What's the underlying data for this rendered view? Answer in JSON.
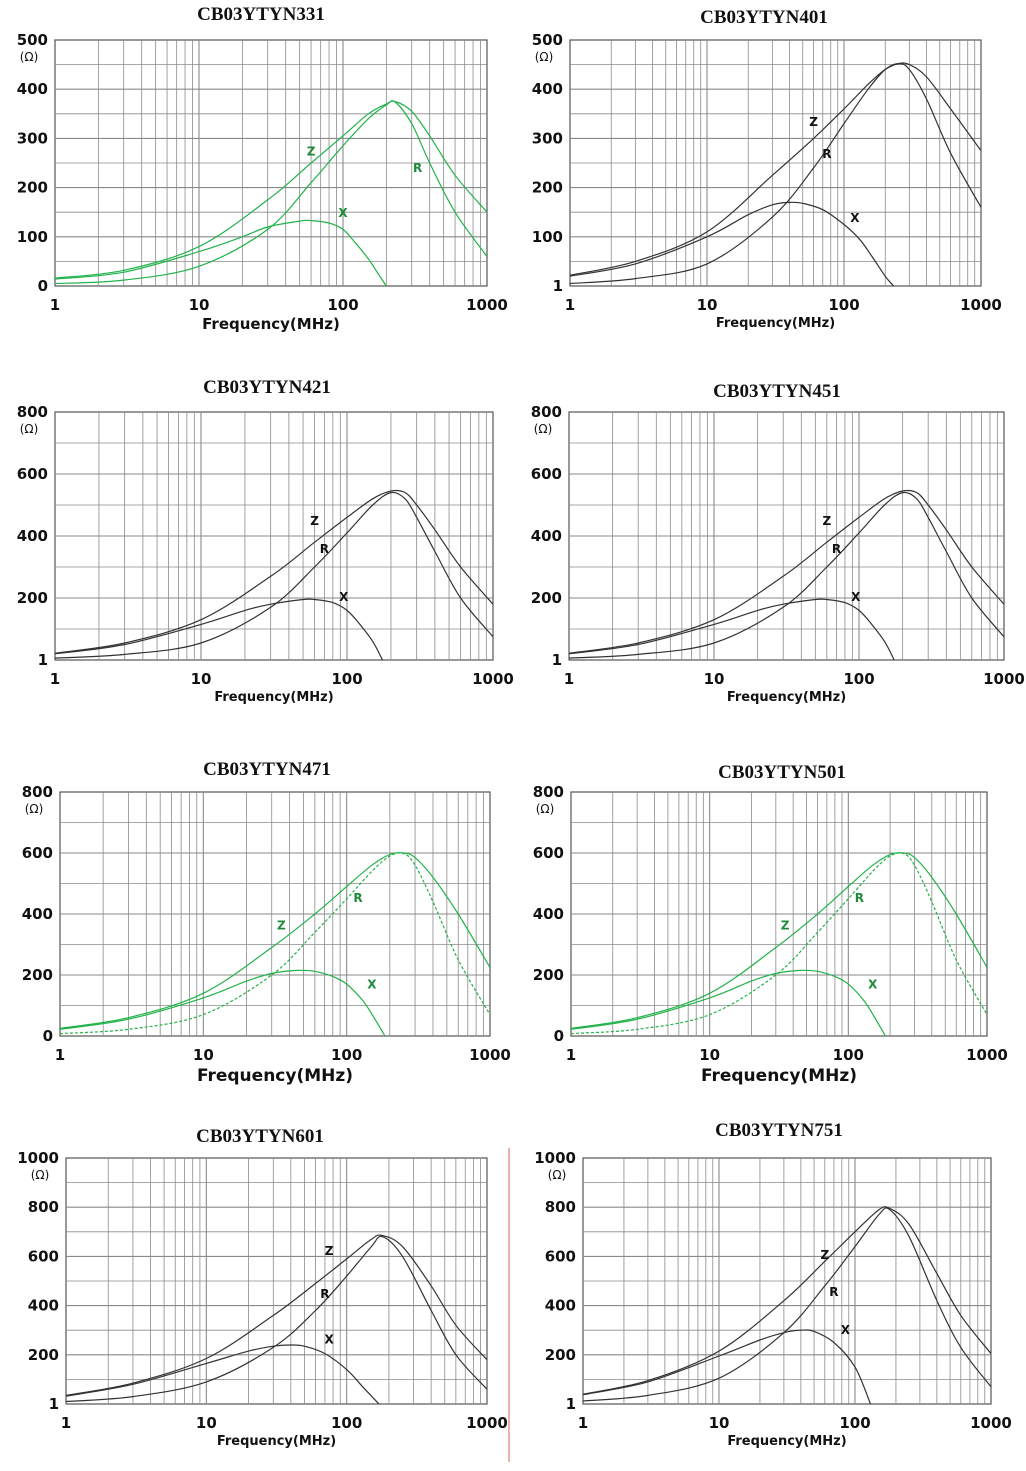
{
  "colors": {
    "black_curves": "#333333",
    "green_curves": "#22b24a",
    "grid": "#8a8a8a",
    "divider": "#e06060"
  },
  "chart_data": [
    {
      "type": "line",
      "title": "CB03YTYN331",
      "curve_color": "green",
      "xlabel": "Frequency(MHz)",
      "yunit": "(Ω)",
      "x_scale": "log",
      "xlim": [
        1,
        1000
      ],
      "xticks": [
        "1",
        "10",
        "100",
        "1000"
      ],
      "ylim": [
        0,
        500
      ],
      "yticks": [
        "0",
        "100",
        "200",
        "300",
        "400",
        "500"
      ],
      "curve_labels": [
        "Z",
        "R",
        "X"
      ],
      "series": [
        {
          "name": "Z",
          "x": [
            1,
            3,
            10,
            30,
            60,
            100,
            150,
            200,
            230,
            300,
            400,
            600,
            1000
          ],
          "y": [
            16,
            32,
            80,
            175,
            250,
            305,
            350,
            370,
            375,
            355,
            305,
            225,
            150
          ]
        },
        {
          "name": "R",
          "x": [
            1,
            3,
            10,
            30,
            60,
            100,
            150,
            200,
            230,
            300,
            400,
            600,
            1000
          ],
          "y": [
            5,
            12,
            40,
            115,
            210,
            285,
            340,
            368,
            374,
            330,
            250,
            150,
            60
          ]
        },
        {
          "name": "X",
          "x": [
            1,
            3,
            10,
            20,
            30,
            50,
            60,
            80,
            100,
            120,
            150,
            180,
            200
          ],
          "y": [
            14,
            28,
            70,
            100,
            120,
            132,
            133,
            128,
            115,
            90,
            55,
            20,
            0
          ]
        }
      ]
    },
    {
      "type": "line",
      "title": "CB03YTYN401",
      "curve_color": "black",
      "xlabel": "Frequency(MHz)",
      "yunit": "(Ω)",
      "x_scale": "log",
      "xlim": [
        1,
        1000
      ],
      "xticks": [
        "1",
        "10",
        "100",
        "1000"
      ],
      "ylim": [
        0,
        500
      ],
      "yticks": [
        "1",
        "100",
        "200",
        "300",
        "400",
        "500"
      ],
      "curve_labels": [
        "Z",
        "R",
        "X"
      ],
      "series": [
        {
          "name": "Z",
          "x": [
            1,
            3,
            10,
            30,
            60,
            100,
            150,
            200,
            250,
            300,
            400,
            600,
            1000
          ],
          "y": [
            22,
            50,
            110,
            225,
            300,
            360,
            410,
            440,
            452,
            450,
            425,
            360,
            275
          ]
        },
        {
          "name": "R",
          "x": [
            1,
            3,
            10,
            30,
            60,
            100,
            150,
            200,
            250,
            300,
            400,
            600,
            1000
          ],
          "y": [
            5,
            15,
            45,
            140,
            240,
            330,
            400,
            440,
            452,
            440,
            380,
            270,
            160
          ]
        },
        {
          "name": "X",
          "x": [
            1,
            3,
            10,
            20,
            30,
            40,
            50,
            70,
            100,
            130,
            160,
            200,
            230
          ],
          "y": [
            20,
            45,
            100,
            145,
            165,
            170,
            168,
            155,
            125,
            95,
            60,
            20,
            0
          ]
        }
      ]
    },
    {
      "type": "line",
      "title": "CB03YTYN421",
      "curve_color": "black",
      "xlabel": "Frequency(MHz)",
      "yunit": "(Ω)",
      "x_scale": "log",
      "xlim": [
        1,
        1000
      ],
      "xticks": [
        "1",
        "10",
        "100",
        "1000"
      ],
      "ylim": [
        0,
        800
      ],
      "yticks": [
        "1",
        "200",
        "400",
        "600",
        "800"
      ],
      "curve_labels": [
        "Z",
        "R",
        "X"
      ],
      "series": [
        {
          "name": "Z",
          "x": [
            1,
            3,
            10,
            30,
            60,
            100,
            150,
            200,
            250,
            300,
            400,
            600,
            1000
          ],
          "y": [
            22,
            55,
            130,
            270,
            380,
            460,
            520,
            545,
            540,
            500,
            420,
            300,
            180
          ]
        },
        {
          "name": "R",
          "x": [
            1,
            3,
            10,
            30,
            60,
            100,
            150,
            200,
            250,
            300,
            400,
            600,
            1000
          ],
          "y": [
            6,
            18,
            55,
            170,
            300,
            410,
            500,
            540,
            520,
            460,
            350,
            200,
            75
          ]
        },
        {
          "name": "X",
          "x": [
            1,
            3,
            10,
            20,
            30,
            50,
            60,
            80,
            100,
            120,
            150,
            175
          ],
          "y": [
            20,
            50,
            115,
            160,
            180,
            195,
            195,
            185,
            160,
            120,
            60,
            0
          ]
        }
      ]
    },
    {
      "type": "line",
      "title": "CB03YTYN451",
      "curve_color": "black",
      "xlabel": "Frequency(MHz)",
      "yunit": "(Ω)",
      "x_scale": "log",
      "xlim": [
        1,
        1000
      ],
      "xticks": [
        "1",
        "10",
        "100",
        "1000"
      ],
      "ylim": [
        0,
        800
      ],
      "yticks": [
        "1",
        "200",
        "400",
        "600",
        "800"
      ],
      "curve_labels": [
        "Z",
        "R",
        "X"
      ],
      "series": [
        {
          "name": "Z",
          "x": [
            1,
            3,
            10,
            30,
            60,
            100,
            150,
            200,
            250,
            300,
            400,
            600,
            1000
          ],
          "y": [
            22,
            55,
            130,
            270,
            380,
            460,
            520,
            545,
            540,
            500,
            420,
            300,
            180
          ]
        },
        {
          "name": "R",
          "x": [
            1,
            3,
            10,
            30,
            60,
            100,
            150,
            200,
            250,
            300,
            400,
            600,
            1000
          ],
          "y": [
            6,
            18,
            55,
            170,
            300,
            410,
            500,
            540,
            520,
            460,
            350,
            200,
            75
          ]
        },
        {
          "name": "X",
          "x": [
            1,
            3,
            10,
            20,
            30,
            50,
            60,
            80,
            100,
            120,
            150,
            175
          ],
          "y": [
            20,
            50,
            115,
            160,
            180,
            195,
            195,
            185,
            160,
            120,
            60,
            0
          ]
        }
      ]
    },
    {
      "type": "line",
      "title": "CB03YTYN471",
      "curve_color": "green",
      "xlabel": "Frequency(MHz)",
      "yunit": "(Ω)",
      "x_scale": "log",
      "xlim": [
        1,
        1000
      ],
      "xticks": [
        "1",
        "10",
        "100",
        "1000"
      ],
      "ylim": [
        0,
        800
      ],
      "yticks": [
        "0",
        "200",
        "400",
        "600",
        "800"
      ],
      "curve_labels": [
        "Z",
        "R",
        "X"
      ],
      "series": [
        {
          "name": "Z",
          "x": [
            1,
            3,
            10,
            30,
            60,
            100,
            150,
            200,
            250,
            300,
            400,
            600,
            1000
          ],
          "y": [
            25,
            60,
            140,
            290,
            400,
            490,
            560,
            595,
            600,
            585,
            520,
            400,
            225
          ]
        },
        {
          "name": "R",
          "x": [
            1,
            3,
            10,
            30,
            60,
            100,
            150,
            200,
            250,
            300,
            400,
            600,
            1000
          ],
          "y": [
            8,
            22,
            70,
            200,
            340,
            450,
            540,
            590,
            598,
            560,
            440,
            250,
            70
          ]
        },
        {
          "name": "X",
          "x": [
            1,
            3,
            10,
            20,
            30,
            45,
            60,
            80,
            100,
            130,
            160,
            185
          ],
          "y": [
            22,
            55,
            125,
            180,
            205,
            215,
            212,
            195,
            170,
            115,
            50,
            0
          ]
        }
      ]
    },
    {
      "type": "line",
      "title": "CB03YTYN501",
      "curve_color": "green",
      "xlabel": "Frequency(MHz)",
      "yunit": "(Ω)",
      "x_scale": "log",
      "xlim": [
        1,
        1000
      ],
      "xticks": [
        "1",
        "10",
        "100",
        "1000"
      ],
      "ylim": [
        0,
        800
      ],
      "yticks": [
        "0",
        "200",
        "400",
        "600",
        "800"
      ],
      "curve_labels": [
        "Z",
        "R",
        "X"
      ],
      "series": [
        {
          "name": "Z",
          "x": [
            1,
            3,
            10,
            30,
            60,
            100,
            150,
            200,
            250,
            300,
            400,
            600,
            1000
          ],
          "y": [
            25,
            60,
            140,
            290,
            400,
            490,
            560,
            595,
            600,
            585,
            520,
            400,
            225
          ]
        },
        {
          "name": "R",
          "x": [
            1,
            3,
            10,
            30,
            60,
            100,
            150,
            200,
            250,
            300,
            400,
            600,
            1000
          ],
          "y": [
            8,
            22,
            70,
            200,
            340,
            450,
            540,
            590,
            598,
            560,
            440,
            250,
            70
          ]
        },
        {
          "name": "X",
          "x": [
            1,
            3,
            10,
            20,
            30,
            45,
            60,
            80,
            100,
            130,
            160,
            185
          ],
          "y": [
            22,
            55,
            125,
            180,
            205,
            215,
            212,
            195,
            170,
            115,
            50,
            0
          ]
        }
      ]
    },
    {
      "type": "line",
      "title": "CB03YTYN601",
      "curve_color": "black",
      "xlabel": "Frequency(MHz)",
      "yunit": "(Ω)",
      "x_scale": "log",
      "xlim": [
        1,
        1000
      ],
      "xticks": [
        "1",
        "10",
        "100",
        "1000"
      ],
      "ylim": [
        0,
        1000
      ],
      "yticks": [
        "1",
        "200",
        "400",
        "600",
        "800",
        "1000"
      ],
      "curve_labels": [
        "Z",
        "R",
        "X"
      ],
      "series": [
        {
          "name": "Z",
          "x": [
            1,
            3,
            10,
            30,
            60,
            100,
            150,
            180,
            250,
            400,
            600,
            1000
          ],
          "y": [
            35,
            85,
            185,
            360,
            490,
            590,
            670,
            685,
            640,
            480,
            320,
            180
          ]
        },
        {
          "name": "R",
          "x": [
            1,
            3,
            10,
            30,
            60,
            100,
            150,
            180,
            250,
            400,
            600,
            1000
          ],
          "y": [
            10,
            30,
            90,
            230,
            380,
            520,
            640,
            680,
            600,
            380,
            200,
            60
          ]
        },
        {
          "name": "X",
          "x": [
            1,
            3,
            10,
            20,
            30,
            40,
            50,
            70,
            100,
            130,
            170
          ],
          "y": [
            32,
            80,
            165,
            215,
            235,
            240,
            235,
            205,
            140,
            70,
            0
          ]
        }
      ]
    },
    {
      "type": "line",
      "title": "CB03YTYN751",
      "curve_color": "black",
      "xlabel": "Frequency(MHz)",
      "yunit": "(Ω)",
      "x_scale": "log",
      "xlim": [
        1,
        1000
      ],
      "xticks": [
        "1",
        "10",
        "100",
        "1000"
      ],
      "ylim": [
        0,
        1000
      ],
      "yticks": [
        "1",
        "200",
        "400",
        "600",
        "800",
        "1000"
      ],
      "curve_labels": [
        "Z",
        "R",
        "X"
      ],
      "series": [
        {
          "name": "Z",
          "x": [
            1,
            3,
            10,
            30,
            60,
            100,
            150,
            180,
            250,
            400,
            600,
            1000
          ],
          "y": [
            40,
            95,
            215,
            420,
            580,
            700,
            790,
            795,
            730,
            530,
            360,
            205
          ]
        },
        {
          "name": "R",
          "x": [
            1,
            3,
            10,
            30,
            60,
            100,
            150,
            180,
            250,
            400,
            600,
            1000
          ],
          "y": [
            12,
            35,
            105,
            290,
            480,
            640,
            770,
            790,
            680,
            420,
            230,
            70
          ]
        },
        {
          "name": "X",
          "x": [
            1,
            3,
            10,
            20,
            30,
            40,
            50,
            70,
            100,
            130
          ],
          "y": [
            38,
            90,
            195,
            260,
            290,
            300,
            295,
            250,
            150,
            0
          ]
        }
      ]
    }
  ]
}
